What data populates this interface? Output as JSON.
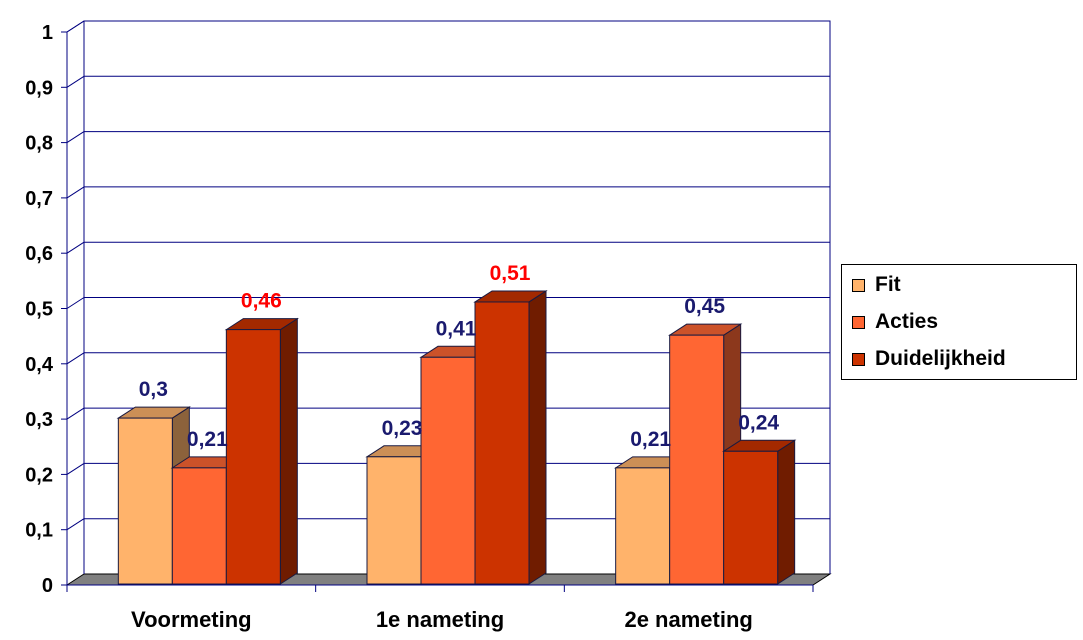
{
  "chart_data": {
    "type": "bar",
    "title": "",
    "xlabel": "",
    "ylabel": "",
    "ylim": [
      0,
      1
    ],
    "yticks": [
      0,
      0.1,
      0.2,
      0.3,
      0.4,
      0.5,
      0.6,
      0.7,
      0.8,
      0.9,
      1
    ],
    "ytick_labels": [
      "0",
      "0,1",
      "0,2",
      "0,3",
      "0,4",
      "0,5",
      "0,6",
      "0,7",
      "0,8",
      "0,9",
      "1"
    ],
    "categories": [
      "Voormeting",
      "1e nameting",
      "2e nameting"
    ],
    "grid": true,
    "legend_position": "right",
    "series": [
      {
        "name": "Fit",
        "values": [
          0.3,
          0.23,
          0.21
        ],
        "labels": [
          "0,3",
          "0,23",
          "0,21"
        ],
        "color": "#FFB36B",
        "label_colors": [
          "#1A1A6E",
          "#1A1A6E",
          "#1A1A6E"
        ]
      },
      {
        "name": "Acties",
        "values": [
          0.21,
          0.41,
          0.45
        ],
        "labels": [
          "0,21",
          "0,41",
          "0,45"
        ],
        "color": "#FF6633",
        "label_colors": [
          "#1A1A6E",
          "#1A1A6E",
          "#1A1A6E"
        ]
      },
      {
        "name": "Duidelijkheid",
        "values": [
          0.46,
          0.51,
          0.24
        ],
        "labels": [
          "0,46",
          "0,51",
          "0,24"
        ],
        "color": "#CC3300",
        "label_colors": [
          "#FF0000",
          "#FF0000",
          "#1A1A6E"
        ]
      }
    ]
  },
  "colors": {
    "axis": "#000080",
    "grid": "#000080",
    "floor": "#808080",
    "label_default": "#1A1A6E",
    "label_highlight": "#FF0000"
  }
}
